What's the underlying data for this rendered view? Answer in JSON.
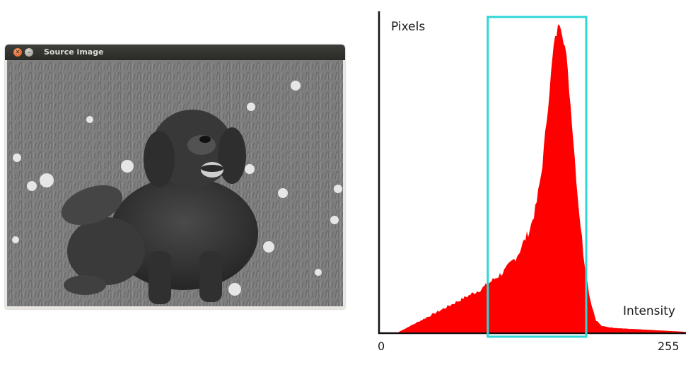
{
  "window": {
    "title": "Source image",
    "close_icon": "close-icon",
    "minimize_icon": "minimize-icon"
  },
  "chart_data": {
    "type": "area",
    "ylabel": "Pixels",
    "xlabel": "Intensity",
    "x_ticks": [
      "0",
      "255"
    ],
    "xlim": [
      0,
      255
    ],
    "series": [
      {
        "color": "#ff0000",
        "x": [
          0,
          15,
          25,
          35,
          45,
          55,
          65,
          75,
          85,
          95,
          105,
          115,
          125,
          130,
          135,
          140,
          145,
          150,
          155,
          160,
          165,
          170,
          175,
          180,
          185,
          195,
          205,
          215,
          225,
          235,
          245,
          255
        ],
        "values": [
          0,
          0,
          2,
          4,
          6,
          8,
          10,
          12,
          14,
          17,
          20,
          25,
          33,
          40,
          52,
          72,
          92,
          100,
          90,
          68,
          43,
          24,
          11,
          4,
          2,
          1.5,
          1.2,
          1.0,
          0.8,
          0.6,
          0.4,
          0.2
        ]
      }
    ],
    "highlight_box": {
      "x_range": [
        90,
        172
      ],
      "color": "#2fd6d6"
    }
  }
}
